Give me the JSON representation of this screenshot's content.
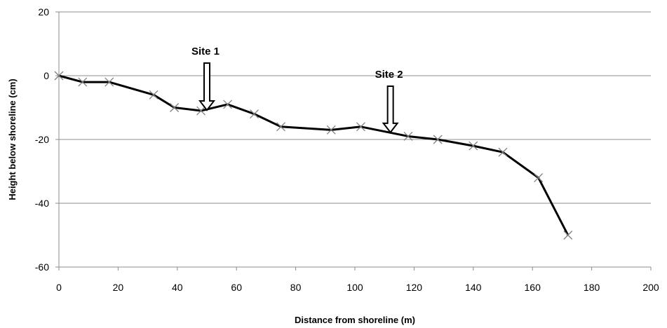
{
  "chart_data": {
    "type": "line",
    "title": "",
    "xlabel": "Distance from shoreline (m)",
    "ylabel": "Height below shoreline (cm)",
    "xlim": [
      0,
      200
    ],
    "ylim": [
      -60,
      20
    ],
    "xticks": [
      0,
      20,
      40,
      60,
      80,
      100,
      120,
      140,
      160,
      180,
      200
    ],
    "yticks": [
      20,
      0,
      -20,
      -40,
      -60
    ],
    "grid": "horizontal",
    "legend": "none",
    "series": [
      {
        "color": "#000000",
        "marker": "x",
        "marker_color": "#7f7f7f",
        "points": [
          {
            "x": 0,
            "y": 0
          },
          {
            "x": 8,
            "y": -2
          },
          {
            "x": 17,
            "y": -2
          },
          {
            "x": 32,
            "y": -6
          },
          {
            "x": 39,
            "y": -10
          },
          {
            "x": 48,
            "y": -11
          },
          {
            "x": 57,
            "y": -9
          },
          {
            "x": 66,
            "y": -12
          },
          {
            "x": 75,
            "y": -16
          },
          {
            "x": 92,
            "y": -17
          },
          {
            "x": 102,
            "y": -16
          },
          {
            "x": 118,
            "y": -19
          },
          {
            "x": 128,
            "y": -20
          },
          {
            "x": 140,
            "y": -22
          },
          {
            "x": 150,
            "y": -24
          },
          {
            "x": 162,
            "y": -32
          },
          {
            "x": 172,
            "y": -50
          }
        ]
      }
    ],
    "annotations": [
      {
        "label": "Site 1",
        "x": 50,
        "y": -11,
        "arrow": "down"
      },
      {
        "label": "Site 2",
        "x": 112,
        "y": -18,
        "arrow": "down"
      }
    ]
  }
}
